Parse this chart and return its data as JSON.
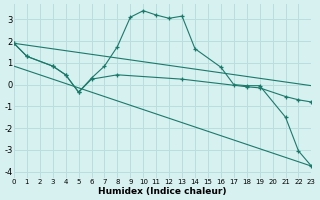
{
  "xlabel": "Humidex (Indice chaleur)",
  "bg_color": "#d7f0f0",
  "line_color": "#1a7a6a",
  "grid_color": "#b8dede",
  "xlim": [
    0,
    23
  ],
  "ylim": [
    -4.3,
    3.7
  ],
  "xticks": [
    0,
    1,
    2,
    3,
    4,
    5,
    6,
    7,
    8,
    9,
    10,
    11,
    12,
    13,
    14,
    15,
    16,
    17,
    18,
    19,
    20,
    21,
    22,
    23
  ],
  "yticks": [
    -4,
    -3,
    -2,
    -1,
    0,
    1,
    2,
    3
  ],
  "line1_x": [
    0,
    1,
    3,
    4,
    5,
    6,
    7,
    8,
    9,
    10,
    11,
    12,
    13,
    14,
    16,
    17,
    18,
    19,
    21,
    22,
    23
  ],
  "line1_y": [
    1.9,
    1.3,
    0.85,
    0.45,
    -0.35,
    0.3,
    0.85,
    1.75,
    3.1,
    3.4,
    3.2,
    3.05,
    3.15,
    1.65,
    0.8,
    0.0,
    -0.05,
    -0.05,
    -1.5,
    -3.05,
    -3.75
  ],
  "line2_x": [
    0,
    1,
    3,
    4,
    5,
    6,
    8,
    13,
    18,
    19,
    21,
    22,
    23
  ],
  "line2_y": [
    1.9,
    1.3,
    0.85,
    0.45,
    -0.35,
    0.25,
    0.45,
    0.25,
    -0.1,
    -0.15,
    -0.55,
    -0.7,
    -0.8
  ],
  "line3_x": [
    0,
    23
  ],
  "line3_y": [
    1.9,
    -0.05
  ],
  "line4_x": [
    0,
    23
  ],
  "line4_y": [
    0.85,
    -3.75
  ]
}
